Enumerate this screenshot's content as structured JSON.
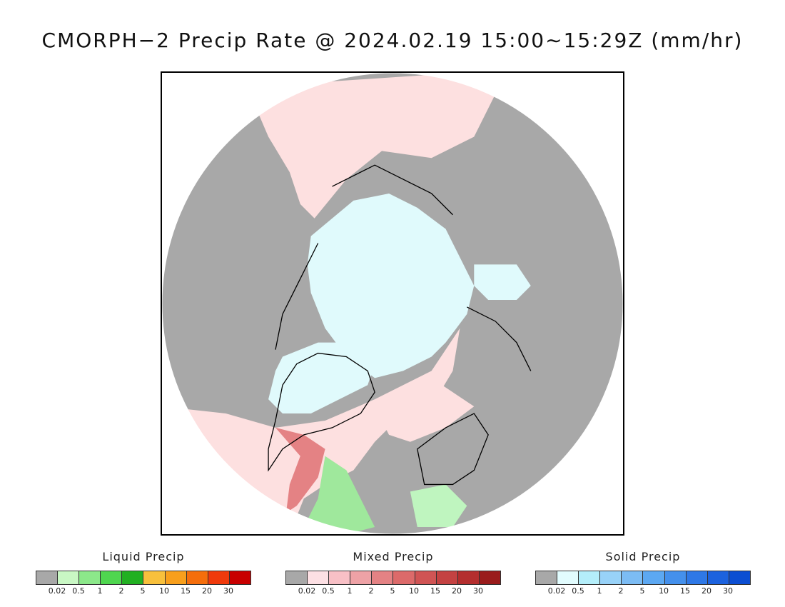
{
  "title": "CMORPH−2 Precip Rate @ 2024.02.19 15:00∼15:29Z (mm/hr)",
  "map": {
    "projection": "north-polar-stereographic",
    "colors": {
      "no_precip": "#a8a8a8",
      "mixed_light": "#fde0e0",
      "solid_light": "#e0fafc",
      "liquid_light": "#bff5bf",
      "coast": "#000000"
    }
  },
  "legends": [
    {
      "title": "Liquid Precip",
      "colors": [
        "#a8a8a8",
        "#c9f7c4",
        "#8ce88a",
        "#4fd64f",
        "#22b022",
        "#f8c03c",
        "#f89f1c",
        "#f56e0c",
        "#f03a0c",
        "#c80000"
      ],
      "ticks": [
        "0.02",
        "0.5",
        "1",
        "2",
        "5",
        "10",
        "15",
        "20",
        "30"
      ]
    },
    {
      "title": "Mixed Precip",
      "colors": [
        "#a8a8a8",
        "#fde0e4",
        "#f8c0c6",
        "#eea2a6",
        "#e48284",
        "#dc6a6a",
        "#d05454",
        "#c44242",
        "#b42e2e",
        "#9a1c1c"
      ],
      "ticks": [
        "0.02",
        "0.5",
        "1",
        "2",
        "5",
        "10",
        "15",
        "20",
        "30"
      ]
    },
    {
      "title": "Solid Precip",
      "colors": [
        "#a8a8a8",
        "#e2fcfe",
        "#b4eefa",
        "#98d2f8",
        "#7cbcf4",
        "#5ca8f2",
        "#4490ec",
        "#2e78e6",
        "#1c62de",
        "#0c4ed2"
      ],
      "ticks": [
        "0.02",
        "0.5",
        "1",
        "2",
        "5",
        "10",
        "15",
        "20",
        "30"
      ]
    }
  ]
}
